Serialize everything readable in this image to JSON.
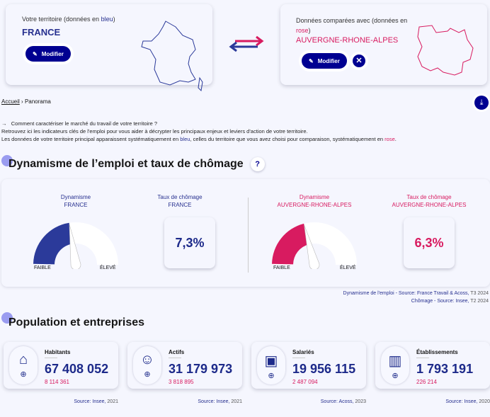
{
  "header": {
    "main": {
      "label_prefix": "Votre territoire (données en ",
      "label_color_word": "bleu",
      "label_suffix": ")",
      "name": "FRANCE",
      "modify": "Modifier"
    },
    "compare": {
      "label_prefix": "Données comparées avec (données en ",
      "label_color_word": "rose",
      "label_suffix": ")",
      "name": "AUVERGNE-RHONE-ALPES",
      "modify": "Modifier"
    }
  },
  "breadcrumb": {
    "home": "Accueil",
    "separator": "›",
    "current": "Panorama"
  },
  "intro": {
    "arrow": "→",
    "question": "Comment caractériser le marché du travail de votre territoire ?",
    "line2": "Retrouvez ici les indicateurs clés de l'emploi pour vous aider à décrypter les principaux enjeux et leviers d'action de votre territoire.",
    "line3_a": "Les données de votre territoire principal apparaissent systématiquement en ",
    "bleu": "bleu",
    "line3_b": ", celles du territoire que vous avez choisi pour comparaison, systématiquement en ",
    "rose": "rose",
    "line3_c": "."
  },
  "section1": {
    "title": "Dynamisme de l’emploi et taux de chômage",
    "help": "?",
    "france": {
      "dyn_label": "Dynamisme",
      "dyn_name": "FRANCE",
      "dyn_level": 0.45,
      "rate_label": "Taux de chômage",
      "rate_name": "FRANCE",
      "rate": "7,3%"
    },
    "compare": {
      "dyn_label": "Dynamisme",
      "dyn_name": "AUVERGNE-RHONE-ALPES",
      "dyn_level": 0.42,
      "rate_label": "Taux de chômage",
      "rate_name": "AUVERGNE-RHONE-ALPES",
      "rate": "6,3%"
    },
    "low": "FAIBLE",
    "high": "ÉLEVÉ",
    "source1_bold": "Dynamisme de l'emploi - Source: France Travail & Acoss,",
    "source1_date": " T3 2024",
    "source2_bold": "Chômage - Source: Insee,",
    "source2_date": " T2 2024"
  },
  "section2": {
    "title": "Population et entreprises",
    "cards": [
      {
        "label": "Habitants",
        "value": "67 408 052",
        "compare": "8 114 361",
        "source": "Source: Insee,",
        "year": " 2021"
      },
      {
        "label": "Actifs",
        "value": "31 179 973",
        "compare": "3 818 895",
        "source": "Source: Insee,",
        "year": " 2021"
      },
      {
        "label": "Salariés",
        "value": "19 956 115",
        "compare": "2 487 094",
        "source": "Source: Acoss,",
        "year": " 2023"
      },
      {
        "label": "Établissements",
        "value": "1 793 191",
        "compare": "226 214",
        "source": "Source: Insee,",
        "year": " 2020"
      }
    ]
  },
  "colors": {
    "blue": "#2b3a9a",
    "pink": "#d81b60",
    "navy": "#000091"
  }
}
